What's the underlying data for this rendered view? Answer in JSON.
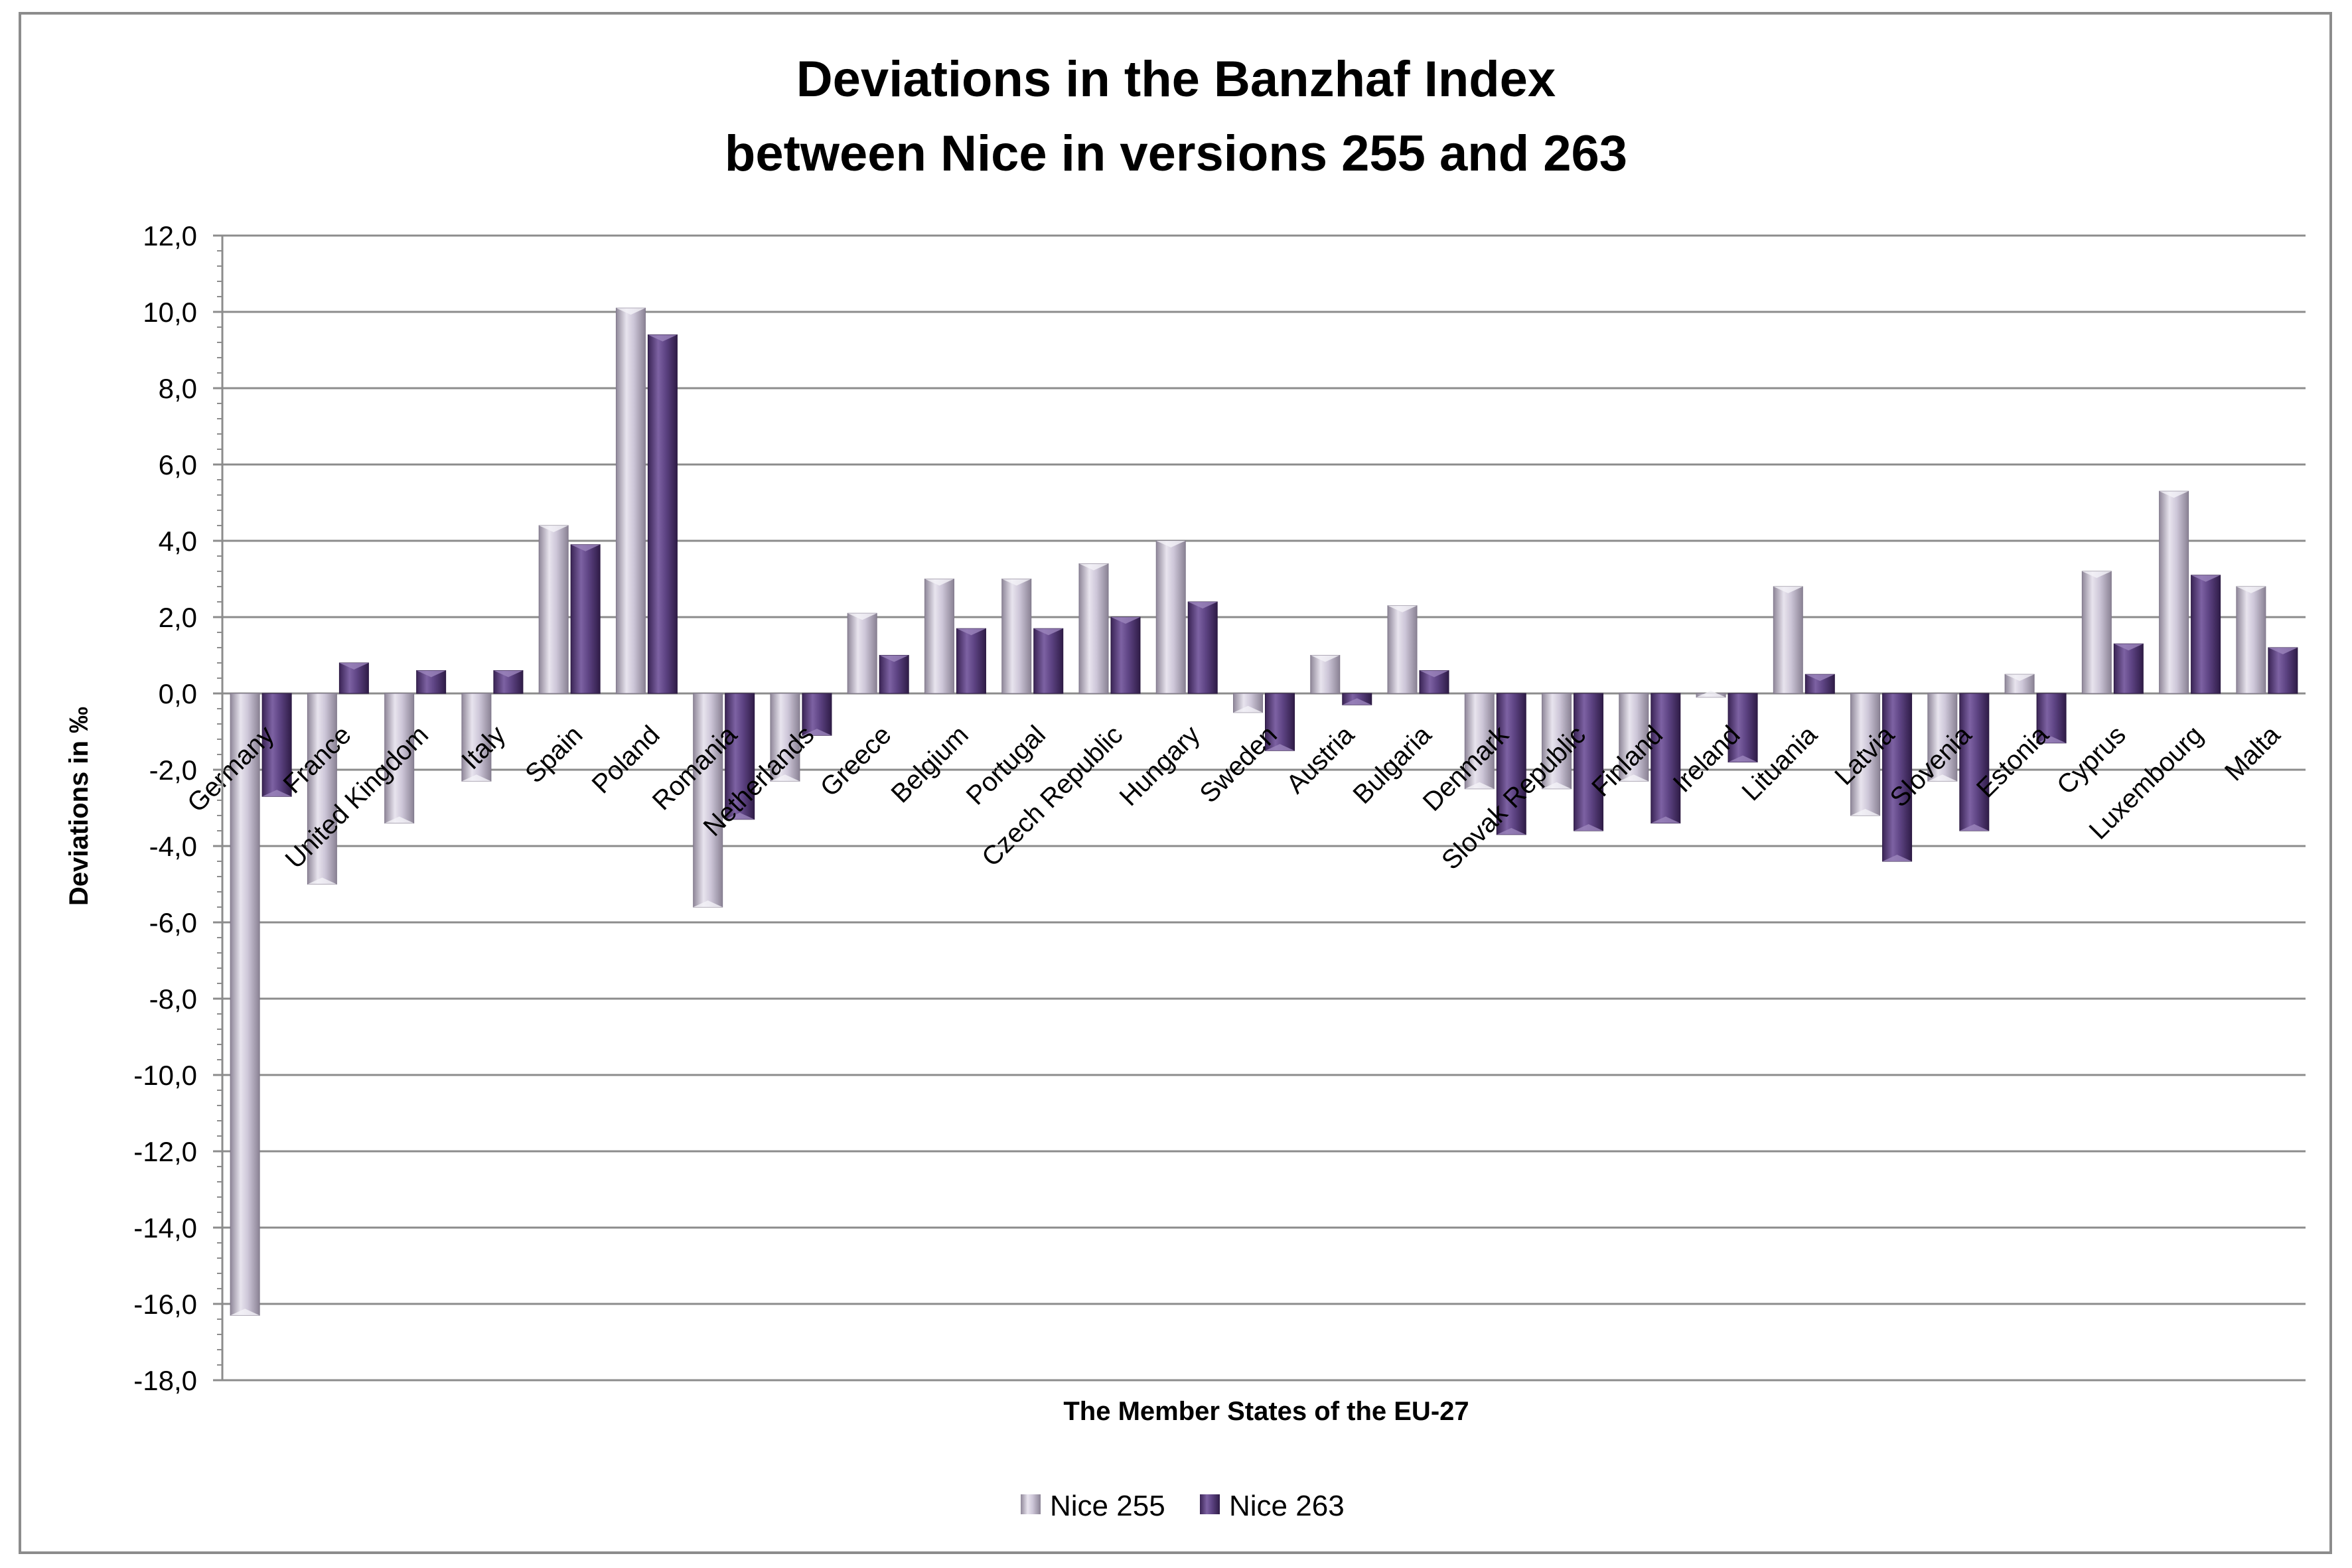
{
  "chart_data": {
    "type": "bar",
    "title_lines": [
      "Deviations in the Banzhaf Index",
      "between Nice in versions 255 and 263"
    ],
    "xlabel": "The Member States of the EU-27",
    "ylabel": "Deviations in ‰",
    "ylim": [
      -18,
      12
    ],
    "ytick_values": [
      12,
      10,
      8,
      6,
      4,
      2,
      0,
      -2,
      -4,
      -6,
      -8,
      -10,
      -12,
      -14,
      -16,
      -18
    ],
    "ytick_labels": [
      "12,0",
      "10,0",
      "8,0",
      "6,0",
      "4,0",
      "2,0",
      "0,0",
      "-2,0",
      "-4,0",
      "-6,0",
      "-8,0",
      "-10,0",
      "-12,0",
      "-14,0",
      "-16,0",
      "-18,0"
    ],
    "grid": true,
    "legend_position": "bottom",
    "categories": [
      "Germany",
      "France",
      "United Kingdom",
      "Italy",
      "Spain",
      "Poland",
      "Romania",
      "Netherlands",
      "Greece",
      "Belgium",
      "Portugal",
      "Czech Republic",
      "Hungary",
      "Sweden",
      "Austria",
      "Bulgaria",
      "Denmark",
      "Slovak Republic",
      "Finland",
      "Ireland",
      "Lituania",
      "Latvia",
      "Slovenia",
      "Estonia",
      "Cyprus",
      "Luxembourg",
      "Malta"
    ],
    "series": [
      {
        "name": "Nice 255",
        "color": "#bcb4cc",
        "values": [
          -16.3,
          -5.0,
          -3.4,
          -2.3,
          4.4,
          10.1,
          -5.6,
          -2.3,
          2.1,
          3.0,
          3.0,
          3.4,
          4.0,
          -0.5,
          1.0,
          2.3,
          -2.5,
          -2.5,
          -2.3,
          -0.1,
          2.8,
          -3.2,
          -2.3,
          0.5,
          3.2,
          5.3,
          2.8
        ]
      },
      {
        "name": "Nice 263",
        "color": "#5a3f7e",
        "values": [
          -2.7,
          0.8,
          0.6,
          0.6,
          3.9,
          9.4,
          -3.3,
          -1.1,
          1.0,
          1.7,
          1.7,
          2.0,
          2.4,
          -1.5,
          -0.3,
          0.6,
          -3.7,
          -3.6,
          -3.4,
          -1.8,
          0.5,
          -4.4,
          -3.6,
          -1.3,
          1.3,
          3.1,
          1.2
        ]
      }
    ]
  }
}
